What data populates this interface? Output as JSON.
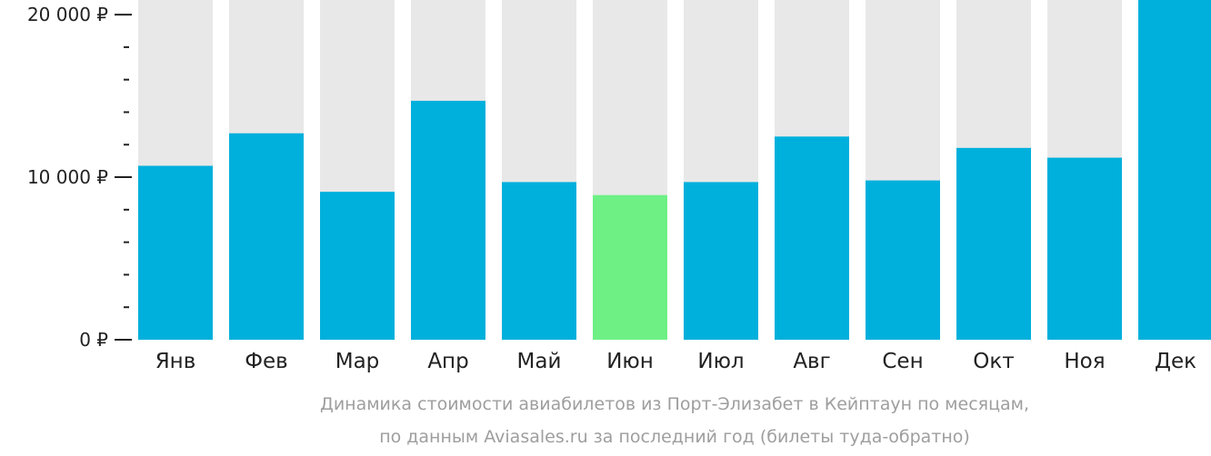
{
  "colors": {
    "bar": "#00b0dc",
    "highlight_bar": "#6ef085",
    "background_bar": "#e8e8e8",
    "axis": "#222222",
    "text": "#222222",
    "caption": "#9e9e9e"
  },
  "caption": {
    "line1": "Динамика стоимости авиабилетов из Порт-Элизабет в Кейптаун по месяцам,",
    "line2": "по данным Aviasales.ru за последний год (билеты туда-обратно)"
  },
  "chart_data": {
    "type": "bar",
    "categories": [
      "Янв",
      "Фев",
      "Мар",
      "Апр",
      "Май",
      "Июн",
      "Июл",
      "Авг",
      "Сен",
      "Окт",
      "Ноя",
      "Дек"
    ],
    "values": [
      10700,
      12700,
      9100,
      14700,
      9700,
      8900,
      9700,
      12500,
      9800,
      11800,
      11200,
      20900
    ],
    "highlight_index": 5,
    "ylim": [
      0,
      20900
    ],
    "yticks": [
      0,
      10000,
      20000
    ],
    "ytick_labels": [
      "0 ₽",
      "10 000 ₽",
      "20 000 ₽"
    ],
    "minor_tick_step": 2000,
    "grid": false,
    "legend": "none",
    "title": "",
    "xlabel": "",
    "ylabel": ""
  }
}
